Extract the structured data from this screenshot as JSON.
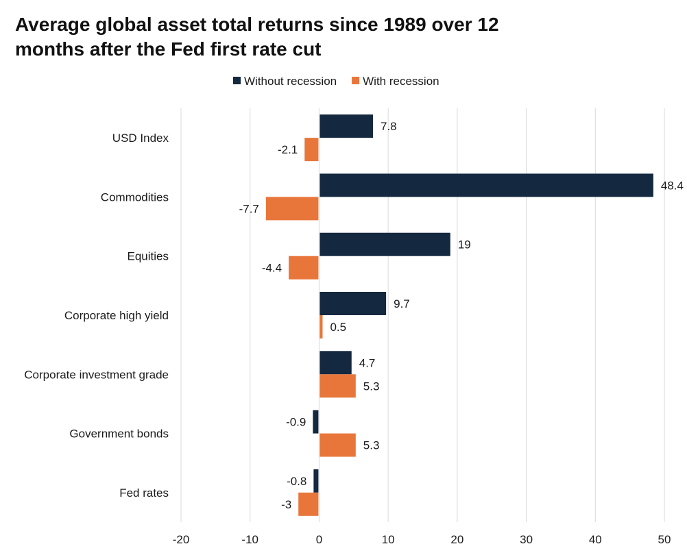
{
  "chart_data": {
    "type": "bar",
    "orientation": "horizontal",
    "title_lines": [
      "Average global asset total returns since 1989 over 12",
      "months after the Fed first rate cut"
    ],
    "categories": [
      "USD Index",
      "Commodities",
      "Equities",
      "Corporate high yield",
      "Corporate investment grade",
      "Government bonds",
      "Fed rates"
    ],
    "series": [
      {
        "name": "Without recession",
        "color": "#14283f",
        "values": [
          7.8,
          48.4,
          19,
          9.7,
          4.7,
          -0.9,
          -0.8
        ],
        "labels": [
          "7.8",
          "48.4",
          "19",
          "9.7",
          "4.7",
          "-0.9",
          "-0.8"
        ]
      },
      {
        "name": "With recession",
        "color": "#e8763a",
        "values": [
          -2.1,
          -7.7,
          -4.4,
          0.5,
          5.3,
          5.3,
          -3
        ],
        "labels": [
          "-2.1",
          "-7.7",
          "-4.4",
          "0.5",
          "5.3",
          "5.3",
          "-3"
        ]
      }
    ],
    "xlim": [
      -20,
      50
    ],
    "xticks": [
      -20,
      -10,
      0,
      10,
      20,
      30,
      40,
      50
    ],
    "xtick_labels": [
      "-20",
      "-10",
      "0",
      "10",
      "20",
      "30",
      "40",
      "50"
    ],
    "xlabel": "",
    "ylabel": "",
    "grid": "vertical",
    "legend_position": "top-center"
  }
}
